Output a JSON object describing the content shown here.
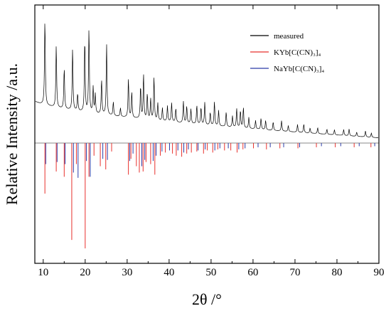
{
  "chart_data": {
    "type": "line",
    "xlabel": "2θ /°",
    "ylabel": "Relative Intensity /a.u.",
    "xlim": [
      8,
      90
    ],
    "x_ticks": [
      10,
      20,
      30,
      40,
      50,
      60,
      70,
      80,
      90
    ],
    "y_ticks_labels": false,
    "grid": false,
    "legend_position": "top-right",
    "series": [
      {
        "name": "measured",
        "color": "#000000",
        "style": "profile",
        "baseline_start": 0.33,
        "baseline_end": 0.045,
        "peaks": [
          [
            10.4,
            1.0
          ],
          [
            13.1,
            0.72
          ],
          [
            15.0,
            0.48
          ],
          [
            17.0,
            0.72
          ],
          [
            18.2,
            0.2
          ],
          [
            19.9,
            0.85
          ],
          [
            20.9,
            0.98
          ],
          [
            21.9,
            0.3
          ],
          [
            22.4,
            0.22
          ],
          [
            23.9,
            0.4
          ],
          [
            25.1,
            0.82
          ],
          [
            26.7,
            0.16
          ],
          [
            28.4,
            0.1
          ],
          [
            30.3,
            0.45
          ],
          [
            31.1,
            0.3
          ],
          [
            33.2,
            0.38
          ],
          [
            33.9,
            0.52
          ],
          [
            34.8,
            0.3
          ],
          [
            35.6,
            0.24
          ],
          [
            36.4,
            0.5
          ],
          [
            37.3,
            0.2
          ],
          [
            38.4,
            0.15
          ],
          [
            39.6,
            0.18
          ],
          [
            40.6,
            0.22
          ],
          [
            41.6,
            0.16
          ],
          [
            43.4,
            0.25
          ],
          [
            44.2,
            0.2
          ],
          [
            45.2,
            0.17
          ],
          [
            46.6,
            0.22
          ],
          [
            47.6,
            0.2
          ],
          [
            48.5,
            0.26
          ],
          [
            49.8,
            0.15
          ],
          [
            50.8,
            0.28
          ],
          [
            51.8,
            0.18
          ],
          [
            53.6,
            0.17
          ],
          [
            55.1,
            0.13
          ],
          [
            56.1,
            0.22
          ],
          [
            57.0,
            0.2
          ],
          [
            57.7,
            0.24
          ],
          [
            59.0,
            0.13
          ],
          [
            60.6,
            0.1
          ],
          [
            61.9,
            0.13
          ],
          [
            63.0,
            0.11
          ],
          [
            64.8,
            0.1
          ],
          [
            66.8,
            0.12
          ],
          [
            68.4,
            0.07
          ],
          [
            70.6,
            0.09
          ],
          [
            72.1,
            0.1
          ],
          [
            73.6,
            0.06
          ],
          [
            75.4,
            0.07
          ],
          [
            77.6,
            0.06
          ],
          [
            79.4,
            0.06
          ],
          [
            81.6,
            0.07
          ],
          [
            82.9,
            0.08
          ],
          [
            84.7,
            0.05
          ],
          [
            86.8,
            0.07
          ],
          [
            88.2,
            0.05
          ]
        ]
      },
      {
        "name": "KYb[C(CN)₃]₄",
        "color": "#e8302c",
        "style": "sticks",
        "values": [
          [
            10.4,
            0.48
          ],
          [
            13.1,
            0.27
          ],
          [
            15.0,
            0.32
          ],
          [
            16.8,
            0.92
          ],
          [
            17.9,
            0.2
          ],
          [
            20.0,
            1.0
          ],
          [
            20.9,
            0.32
          ],
          [
            22.1,
            0.12
          ],
          [
            23.6,
            0.22
          ],
          [
            24.9,
            0.25
          ],
          [
            26.3,
            0.08
          ],
          [
            30.3,
            0.3
          ],
          [
            30.9,
            0.15
          ],
          [
            32.2,
            0.22
          ],
          [
            32.9,
            0.28
          ],
          [
            33.8,
            0.27
          ],
          [
            34.5,
            0.18
          ],
          [
            35.6,
            0.2
          ],
          [
            36.6,
            0.3
          ],
          [
            37.9,
            0.12
          ],
          [
            39.1,
            0.09
          ],
          [
            40.8,
            0.1
          ],
          [
            41.7,
            0.12
          ],
          [
            43.0,
            0.13
          ],
          [
            44.2,
            0.1
          ],
          [
            45.3,
            0.09
          ],
          [
            46.6,
            0.08
          ],
          [
            48.2,
            0.1
          ],
          [
            49.1,
            0.07
          ],
          [
            50.4,
            0.09
          ],
          [
            51.6,
            0.06
          ],
          [
            53.2,
            0.07
          ],
          [
            54.7,
            0.07
          ],
          [
            56.2,
            0.09
          ],
          [
            57.6,
            0.06
          ],
          [
            60.1,
            0.05
          ],
          [
            63.2,
            0.06
          ],
          [
            66.4,
            0.05
          ],
          [
            70.7,
            0.05
          ],
          [
            75.1,
            0.04
          ],
          [
            79.6,
            0.04
          ],
          [
            84.1,
            0.04
          ],
          [
            88.1,
            0.04
          ]
        ]
      },
      {
        "name": "NaYb[C(CN)₃]₄",
        "color": "#2a3aa8",
        "style": "sticks",
        "values": [
          [
            10.6,
            0.2
          ],
          [
            13.3,
            0.18
          ],
          [
            15.2,
            0.2
          ],
          [
            17.2,
            0.28
          ],
          [
            18.3,
            0.33
          ],
          [
            20.3,
            0.17
          ],
          [
            21.2,
            0.32
          ],
          [
            24.2,
            0.15
          ],
          [
            25.3,
            0.16
          ],
          [
            30.6,
            0.17
          ],
          [
            31.4,
            0.1
          ],
          [
            33.5,
            0.22
          ],
          [
            34.2,
            0.16
          ],
          [
            36.2,
            0.17
          ],
          [
            36.9,
            0.12
          ],
          [
            38.3,
            0.08
          ],
          [
            40.1,
            0.07
          ],
          [
            42.1,
            0.07
          ],
          [
            43.5,
            0.09
          ],
          [
            44.6,
            0.06
          ],
          [
            46.9,
            0.07
          ],
          [
            48.6,
            0.06
          ],
          [
            50.9,
            0.07
          ],
          [
            52.1,
            0.05
          ],
          [
            54.1,
            0.05
          ],
          [
            56.6,
            0.06
          ],
          [
            58.1,
            0.05
          ],
          [
            61.2,
            0.04
          ],
          [
            64.1,
            0.04
          ],
          [
            67.3,
            0.04
          ],
          [
            71.1,
            0.04
          ],
          [
            76.3,
            0.03
          ],
          [
            80.9,
            0.03
          ],
          [
            85.3,
            0.03
          ],
          [
            89.0,
            0.03
          ]
        ]
      }
    ]
  }
}
